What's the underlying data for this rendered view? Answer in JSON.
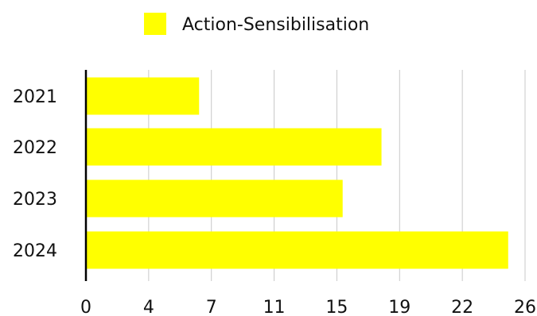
{
  "chart_data": {
    "type": "bar",
    "orientation": "horizontal",
    "categories": [
      "2021",
      "2022",
      "2023",
      "2024"
    ],
    "series": [
      {
        "name": "Action-Sensibilisation",
        "values": [
          6.7,
          17.5,
          15.2,
          25
        ]
      }
    ],
    "x_ticks": [
      "0",
      "4",
      "7",
      "11",
      "15",
      "19",
      "22",
      "26"
    ],
    "xlim": [
      0,
      26
    ],
    "grid": "vertical",
    "legend": "top-center",
    "colors": {
      "bar": "#FFFF00",
      "grid": "#C8C8C8",
      "axis": "#000000"
    }
  }
}
